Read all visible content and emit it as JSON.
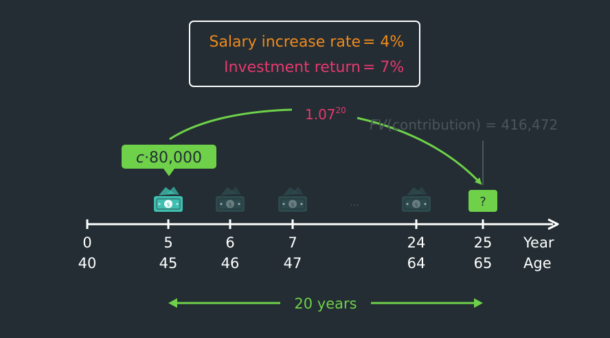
{
  "colors": {
    "background": "#232d33",
    "salary": "#f08a1c",
    "investment": "#e8386f",
    "green": "#6fd14a",
    "white": "#ffffff",
    "faded": "#4b5559",
    "money_bright": "#3fbfb0",
    "money_faded": "#2f4f52"
  },
  "rates_box": {
    "salary_label": "Salary increase rate",
    "salary_eq": "= 4%",
    "investment_label": "Investment return",
    "investment_eq": "= 7%"
  },
  "growth": {
    "base": "1.07",
    "exponent": "20"
  },
  "fv_note": {
    "prefix": "FV",
    "text": "(contribution) = 416,472"
  },
  "contribution_label": {
    "var": "c",
    "text": "·80,000"
  },
  "unknown_marker": "?",
  "ellipsis": "...",
  "timeline": {
    "axis_year_label": "Year",
    "axis_age_label": "Age",
    "ticks": [
      {
        "year": "0",
        "age": "40"
      },
      {
        "year": "5",
        "age": "45"
      },
      {
        "year": "6",
        "age": "46"
      },
      {
        "year": "7",
        "age": "47"
      },
      {
        "year": "24",
        "age": "64"
      },
      {
        "year": "25",
        "age": "65"
      }
    ]
  },
  "span_label": "20 years",
  "money_icons": [
    {
      "year": "5",
      "state": "active"
    },
    {
      "year": "6",
      "state": "faded"
    },
    {
      "year": "7",
      "state": "faded"
    },
    {
      "year": "24",
      "state": "faded"
    }
  ]
}
